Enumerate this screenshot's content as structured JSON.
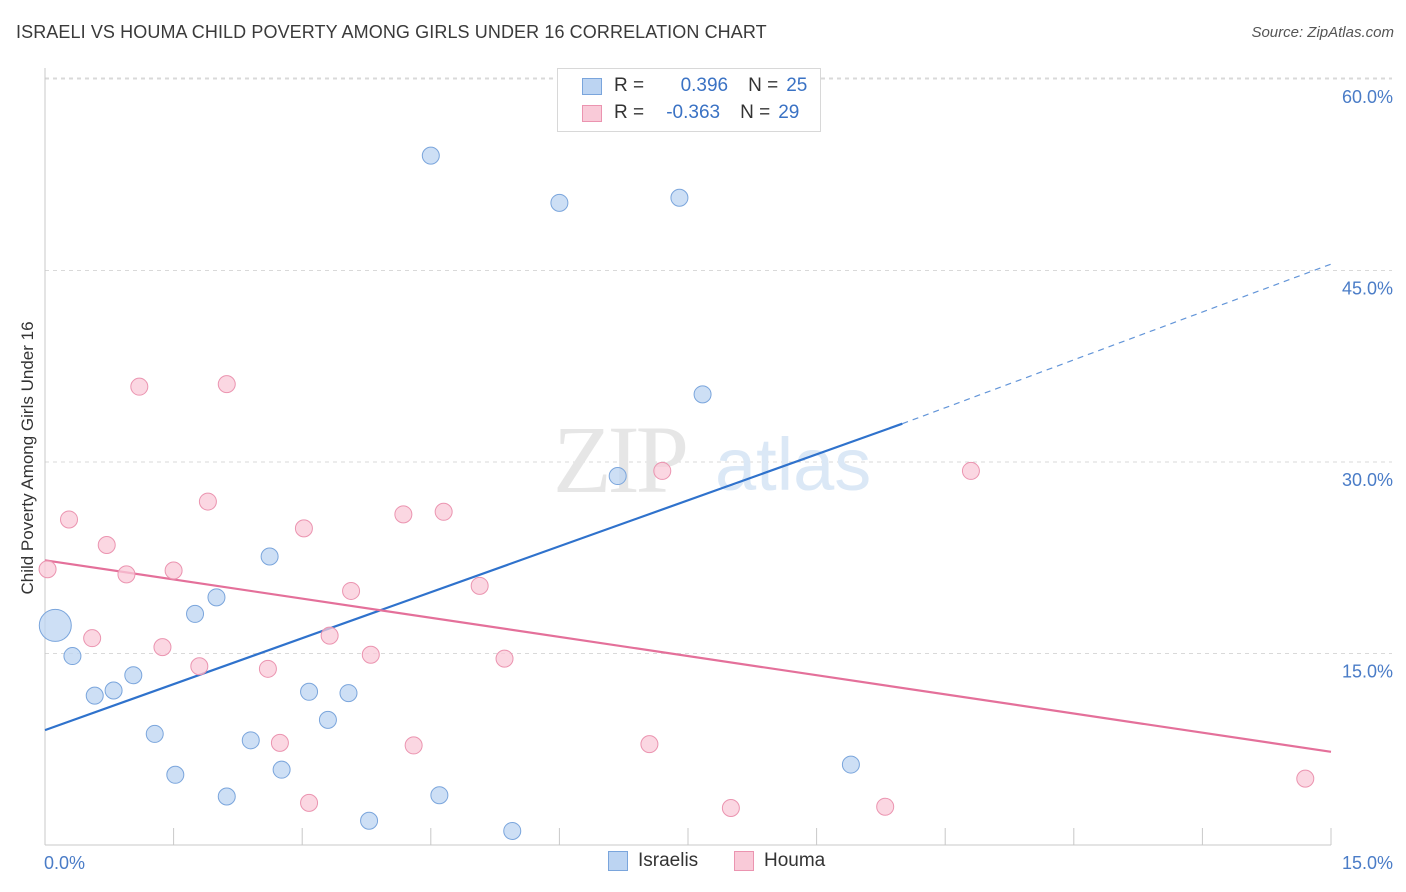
{
  "title": "ISRAELI VS HOUMA CHILD POVERTY AMONG GIRLS UNDER 16 CORRELATION CHART",
  "source": "Source: ZipAtlas.com",
  "watermark": {
    "zip": "ZIP",
    "atlas": "atlas"
  },
  "legend": {
    "rows": [
      {
        "r_label": "R =",
        "r_value": "0.396",
        "n_label": "N =",
        "n_value": "25"
      },
      {
        "r_label": "R =",
        "r_value": "-0.363",
        "n_label": "N =",
        "n_value": "29"
      }
    ]
  },
  "bottom_legend": {
    "israelis": "Israelis",
    "houma": "Houma"
  },
  "colors": {
    "israelis_fill": "#bcd4f2",
    "israelis_stroke": "#7aa5dc",
    "israelis_line": "#2f72cc",
    "houma_fill": "#f9cad8",
    "houma_stroke": "#eb94b0",
    "houma_line": "#e4709a",
    "grid": "#d9d9d9",
    "tick_label": "#4a7cc7"
  },
  "chart_data": {
    "type": "scatter",
    "title": "ISRAELI VS HOUMA CHILD POVERTY AMONG GIRLS UNDER 16 CORRELATION CHART",
    "xlabel": "",
    "ylabel": "Child Poverty Among Girls Under 16",
    "xlim": [
      0,
      15
    ],
    "ylim": [
      0,
      60
    ],
    "x_tick_labels": [
      "0.0%",
      "15.0%"
    ],
    "y_ticks": [
      15,
      30,
      45,
      60
    ],
    "y_tick_labels": [
      "15.0%",
      "30.0%",
      "45.0%",
      "60.0%"
    ],
    "grid": true,
    "series": [
      {
        "name": "Israelis",
        "points": [
          {
            "x": 0.12,
            "y": 17.2,
            "size": "large"
          },
          {
            "x": 0.32,
            "y": 14.8
          },
          {
            "x": 0.58,
            "y": 11.7
          },
          {
            "x": 0.8,
            "y": 12.1
          },
          {
            "x": 1.03,
            "y": 13.3
          },
          {
            "x": 1.28,
            "y": 8.7
          },
          {
            "x": 1.52,
            "y": 5.5
          },
          {
            "x": 1.75,
            "y": 18.1
          },
          {
            "x": 2.0,
            "y": 19.4
          },
          {
            "x": 2.12,
            "y": 3.8
          },
          {
            "x": 2.4,
            "y": 8.2
          },
          {
            "x": 2.62,
            "y": 22.6
          },
          {
            "x": 2.76,
            "y": 5.9
          },
          {
            "x": 3.08,
            "y": 12.0
          },
          {
            "x": 3.3,
            "y": 9.8
          },
          {
            "x": 3.54,
            "y": 11.9
          },
          {
            "x": 3.78,
            "y": 1.9
          },
          {
            "x": 4.5,
            "y": 54.0
          },
          {
            "x": 4.6,
            "y": 3.9
          },
          {
            "x": 5.45,
            "y": 1.1
          },
          {
            "x": 6.0,
            "y": 50.3
          },
          {
            "x": 6.68,
            "y": 28.9
          },
          {
            "x": 7.4,
            "y": 50.7
          },
          {
            "x": 7.67,
            "y": 35.3
          },
          {
            "x": 9.4,
            "y": 6.3
          }
        ],
        "trend": {
          "x0": 0.0,
          "y0": 9.0,
          "x1": 10.0,
          "y1": 33.0,
          "dashed_to_x": 15.0,
          "dashed_to_y": 45.5
        }
      },
      {
        "name": "Houma",
        "points": [
          {
            "x": 0.03,
            "y": 21.6
          },
          {
            "x": 0.28,
            "y": 25.5
          },
          {
            "x": 0.55,
            "y": 16.2
          },
          {
            "x": 0.72,
            "y": 23.5
          },
          {
            "x": 0.95,
            "y": 21.2
          },
          {
            "x": 1.1,
            "y": 35.9
          },
          {
            "x": 1.37,
            "y": 15.5
          },
          {
            "x": 1.5,
            "y": 21.5
          },
          {
            "x": 1.8,
            "y": 14.0
          },
          {
            "x": 1.9,
            "y": 26.9
          },
          {
            "x": 2.12,
            "y": 36.1
          },
          {
            "x": 2.6,
            "y": 13.8
          },
          {
            "x": 2.74,
            "y": 8.0
          },
          {
            "x": 3.02,
            "y": 24.8
          },
          {
            "x": 3.08,
            "y": 3.3
          },
          {
            "x": 3.32,
            "y": 16.4
          },
          {
            "x": 3.57,
            "y": 19.9
          },
          {
            "x": 3.8,
            "y": 14.9
          },
          {
            "x": 4.18,
            "y": 25.9
          },
          {
            "x": 4.3,
            "y": 7.8
          },
          {
            "x": 4.65,
            "y": 26.1
          },
          {
            "x": 5.07,
            "y": 20.3
          },
          {
            "x": 5.36,
            "y": 14.6
          },
          {
            "x": 7.2,
            "y": 29.3
          },
          {
            "x": 7.05,
            "y": 7.9
          },
          {
            "x": 8.0,
            "y": 2.9
          },
          {
            "x": 9.8,
            "y": 3.0
          },
          {
            "x": 10.8,
            "y": 29.3
          },
          {
            "x": 14.7,
            "y": 5.2
          }
        ],
        "trend": {
          "x0": 0.0,
          "y0": 22.3,
          "x1": 15.0,
          "y1": 7.3
        }
      }
    ]
  }
}
